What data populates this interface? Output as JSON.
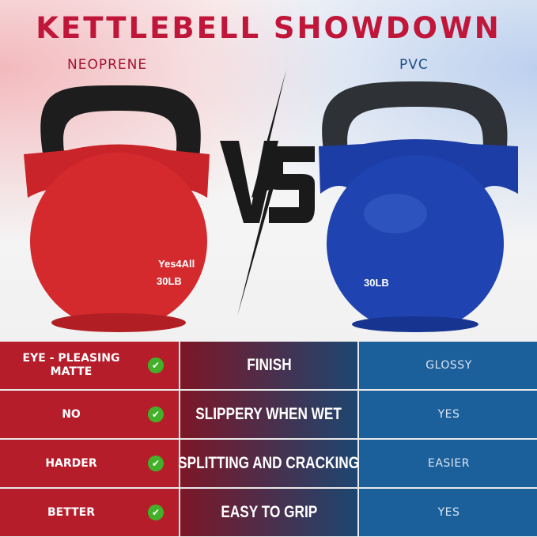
{
  "header": {
    "title": "KETTLEBELL SHOWDOWN",
    "left_label": "NEOPRENE",
    "right_label": "PVC",
    "vs": "VS"
  },
  "products": {
    "left": {
      "brand": "Yes4All",
      "weight": "30LB",
      "color": "#d42a2e"
    },
    "right": {
      "weight": "30LB",
      "color": "#1f43b0"
    }
  },
  "colors": {
    "title": "#c0163a",
    "left_cell": "#b51d2b",
    "right_cell": "#1b5f9b",
    "check": "#43b02a"
  },
  "rows": [
    {
      "neoprene": "EYE - PLEASING MATTE",
      "feature": "FINISH",
      "pvc": "GLOSSY",
      "icon": "check-circle-icon"
    },
    {
      "neoprene": "NO",
      "feature": "SLIPPERY WHEN WET",
      "pvc": "YES",
      "icon": "check-circle-icon"
    },
    {
      "neoprene": "HARDER",
      "feature": "SPLITTING AND CRACKING",
      "pvc": "EASIER",
      "icon": "check-circle-icon"
    },
    {
      "neoprene": "BETTER",
      "feature": "EASY TO GRIP",
      "pvc": "YES",
      "icon": "check-circle-icon"
    }
  ]
}
